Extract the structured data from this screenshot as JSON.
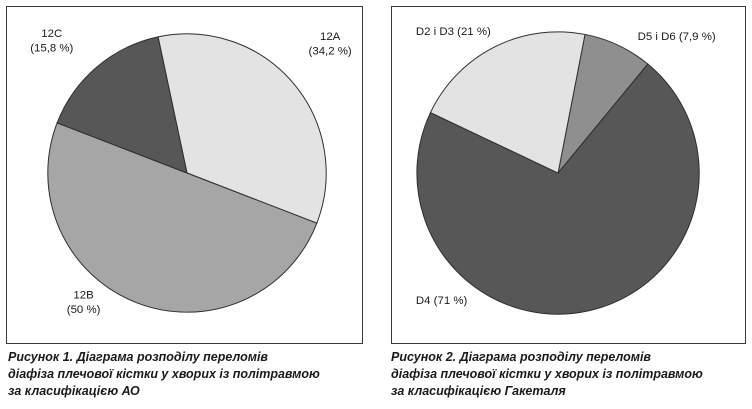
{
  "chart_data": [
    {
      "type": "pie",
      "slices": [
        {
          "label": "12A",
          "value_text": "(34,2 %)",
          "value": 34.2,
          "color": "#e3e3e3"
        },
        {
          "label": "12B",
          "value_text": "(50 %)",
          "value": 50.0,
          "color": "#a6a6a6"
        },
        {
          "label": "12C",
          "value_text": "(15,8 %)",
          "value": 15.8,
          "color": "#575757"
        }
      ],
      "caption": [
        "Рисунок 1. Діаграма розподілу переломів",
        "діафіза плечової кістки у хворих із політравмою",
        "за класифікацією АО"
      ]
    },
    {
      "type": "pie",
      "slices": [
        {
          "label": "D5 і D6 (7,9 %)",
          "value": 7.9,
          "color": "#8f8f8f"
        },
        {
          "label": "D4 (71 %)",
          "value": 71.0,
          "color": "#575757"
        },
        {
          "label": "D2 і D3 (21 %)",
          "value": 21.0,
          "color": "#e3e3e3"
        }
      ],
      "caption": [
        "Рисунок 2. Діаграма розподілу переломів",
        "діафіза плечової кістки у хворих із політравмою",
        "за класифікацією Гакеталя"
      ]
    }
  ]
}
